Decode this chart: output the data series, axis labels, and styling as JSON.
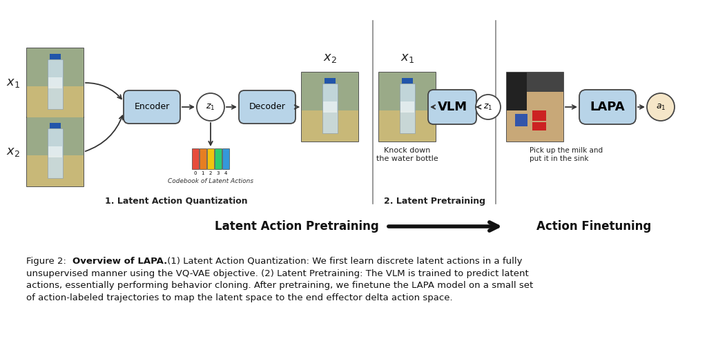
{
  "bg_color": "#ffffff",
  "fig_width": 10.24,
  "fig_height": 5.07,
  "section1_label": "1. Latent Action Quantization",
  "section2_label": "2. Latent Pretraining",
  "encoder_label": "Encoder",
  "decoder_label": "Decoder",
  "vlm_label": "VLM",
  "lapa_label": "LAPA",
  "codebook_label": "Codebook of Latent Actions",
  "codebook_numbers": [
    "0",
    "1",
    "2",
    "3",
    "4"
  ],
  "codebook_colors": [
    "#e74c3c",
    "#e67e22",
    "#f1c40f",
    "#2ecc71",
    "#3498db"
  ],
  "knock_down_text": "Knock down\nthe water bottle",
  "pickup_text": "Pick up the milk and\nput it in the sink",
  "x1_label": "$x_1$",
  "x2_label": "$x_2$",
  "x2_top_label": "$x_2$",
  "x1_mid_label": "$x_1$",
  "z1_label": "$z_1$",
  "z1_label2": "$z_1$",
  "a1_label": "$a_1$",
  "arrow_label_left": "Latent Action Pretraining",
  "arrow_label_right": "Action Finetuning",
  "box_color_encoder": "#b8d4e8",
  "box_color_vlm": "#b8d4e8",
  "box_color_lapa": "#b8d4e8",
  "circle_fill": "#ffffff",
  "circle_fill_a1": "#f5e6c8",
  "box_border": "#555555",
  "divider_color": "#888888"
}
